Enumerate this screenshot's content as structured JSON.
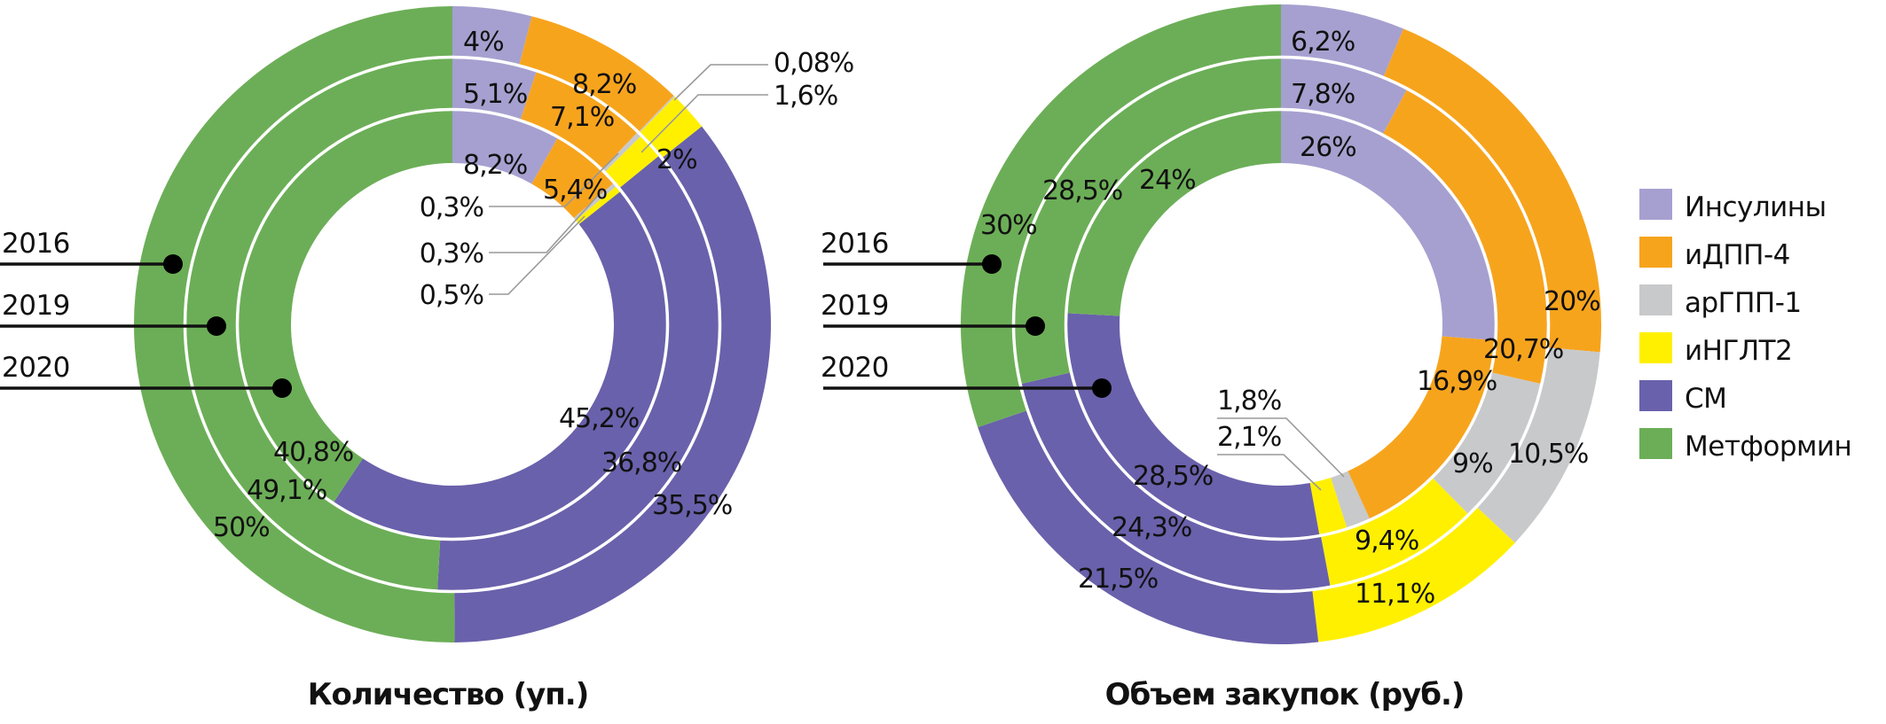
{
  "colors": {
    "Инсулины": "#A6A0D0",
    "иДПП-4": "#F7A41D",
    "арГПП-1": "#C8C9CB",
    "иНГЛТ2": "#FFF000",
    "СМ": "#6961AB",
    "Метформин": "#6CAE57",
    "callout_line": "#999999",
    "ring_separator": "#ffffff"
  },
  "legend": {
    "placement": "right",
    "items": [
      "Инсулины",
      "иДПП-4",
      "арГПП-1",
      "иНГЛТ2",
      "СМ",
      "Метформин"
    ]
  },
  "ring_years": [
    "2016",
    "2019",
    "2020"
  ],
  "chart_data": [
    {
      "type": "pie",
      "variant": "nested-donut",
      "title": "Количество (уп.)",
      "categories": [
        "Инсулины",
        "иДПП-4",
        "арГПП-1",
        "иНГЛТ2",
        "СМ",
        "Метформин"
      ],
      "ring_order": "outer-to-inner",
      "series": [
        {
          "name": "2016",
          "values": [
            4,
            8.2,
            0.08,
            2,
            35.5,
            50
          ],
          "labels": [
            "4%",
            "8,2%",
            "0,08%",
            "2%",
            "35,5%",
            "50%"
          ]
        },
        {
          "name": "2019",
          "values": [
            5.1,
            7.1,
            0.3,
            1.6,
            36.8,
            49.1
          ],
          "labels": [
            "5,1%",
            "7,1%",
            "0,3%",
            "1,6%",
            "36,8%",
            "49,1%"
          ]
        },
        {
          "name": "2020",
          "values": [
            8.2,
            5.4,
            0.3,
            0.5,
            45.2,
            40.8
          ],
          "labels": [
            "8,2%",
            "5,4%",
            "0,3%",
            "0,5%",
            "45,2%",
            "40,8%"
          ]
        }
      ]
    },
    {
      "type": "pie",
      "variant": "nested-donut",
      "title": "Объем закупок (руб.)",
      "categories": [
        "Инсулины",
        "иДПП-4",
        "арГПП-1",
        "иНГЛТ2",
        "СМ",
        "Метформин"
      ],
      "ring_order": "outer-to-inner",
      "series": [
        {
          "name": "2016",
          "values": [
            6.2,
            20,
            10.5,
            11.1,
            21.5,
            30
          ],
          "labels": [
            "6,2%",
            "20%",
            "10,5%",
            "11,1%",
            "21,5%",
            "30%"
          ]
        },
        {
          "name": "2019",
          "values": [
            7.8,
            20.7,
            9,
            9.4,
            24.3,
            28.5
          ],
          "labels": [
            "7,8%",
            "20,7%",
            "9%",
            "9,4%",
            "24,3%",
            "28,5%"
          ]
        },
        {
          "name": "2020",
          "values": [
            26,
            16.9,
            1.8,
            2.1,
            28.5,
            24
          ],
          "labels": [
            "26%",
            "16,9%",
            "1,8%",
            "2,1%",
            "28,5%",
            "24%"
          ]
        }
      ]
    }
  ]
}
